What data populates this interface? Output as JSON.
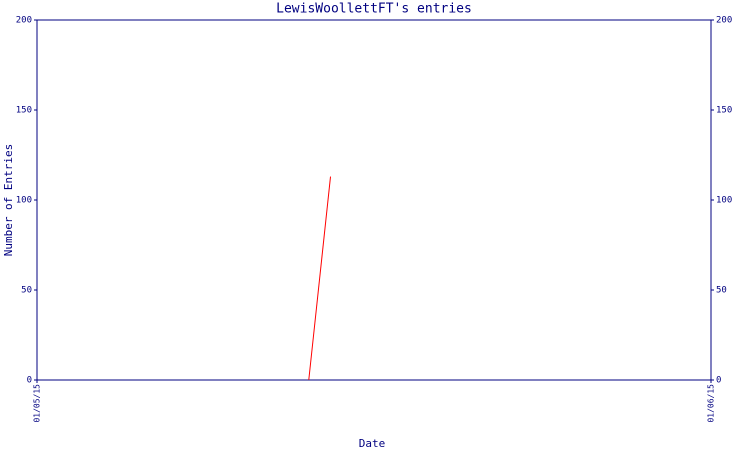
{
  "chart_data": {
    "type": "line",
    "title": "LewisWoollettFT's entries",
    "x_label": "Date",
    "y_label": "Number of Entries",
    "x": [
      12.5,
      13.5
    ],
    "series": [
      {
        "name": "LewisWoollettFT",
        "color": "#ff0000",
        "values": [
          0,
          113
        ]
      }
    ],
    "xlim": [
      0,
      31
    ],
    "xticks": [
      {
        "value": 0,
        "label": "01/05/15"
      },
      {
        "value": 31,
        "label": "01/06/15"
      }
    ],
    "ylim": [
      0,
      200
    ],
    "yticks": [
      0,
      50,
      100,
      150,
      200
    ],
    "y2lim": [
      0,
      200
    ],
    "y2ticks": [
      0,
      50,
      100,
      150,
      200
    ],
    "axis_color": "#000080",
    "grid": false
  }
}
